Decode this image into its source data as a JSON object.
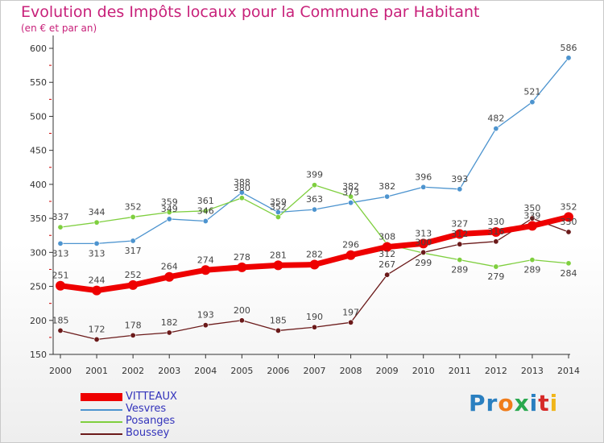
{
  "header": {
    "title": "Evolution des Impôts locaux pour la Commune par Habitant",
    "subtitle": "(en € et par an)"
  },
  "brand": {
    "text": "Proxiti",
    "letters": [
      "P",
      "r",
      "o",
      "x",
      "i",
      "t",
      "i"
    ],
    "letter_colors": [
      "#2a7fc0",
      "#2a7fc0",
      "#f07c1a",
      "#2aa94f",
      "#2a7fc0",
      "#d62a28",
      "#f0b51a"
    ]
  },
  "chart_data": {
    "type": "line",
    "title": "Evolution des Impôts locaux pour la Commune par Habitant",
    "subtitle": "(en € et par an)",
    "xlabel": "",
    "ylabel": "",
    "x": [
      "2000",
      "2001",
      "2002",
      "2003",
      "2004",
      "2005",
      "2006",
      "2007",
      "2008",
      "2009",
      "2010",
      "2011",
      "2012",
      "2013",
      "2014"
    ],
    "ylim": [
      150,
      600
    ],
    "yticks": [
      150,
      200,
      250,
      300,
      350,
      400,
      450,
      500,
      550,
      600
    ],
    "grid": false,
    "legend_position": "bottom-left",
    "series": [
      {
        "name": "VITTEAUX",
        "color": "#ee0000",
        "bold": true,
        "values": [
          251,
          244,
          252,
          264,
          274,
          278,
          281,
          282,
          296,
          308,
          313,
          327,
          330,
          339,
          352
        ],
        "labels": [
          "251",
          "244",
          "252",
          "264",
          "274",
          "278",
          "281",
          "282",
          "296",
          "308",
          "313",
          "327",
          "330",
          "339",
          "352"
        ]
      },
      {
        "name": "Vesvres",
        "color": "#4d94cf",
        "bold": false,
        "values": [
          313,
          313,
          317,
          349,
          346,
          388,
          359,
          363,
          373,
          382,
          396,
          393,
          482,
          521,
          586
        ],
        "labels": [
          "313",
          "313",
          "317",
          "349",
          "346",
          "388",
          "359",
          "363",
          "373",
          "382",
          "396",
          "393",
          "482",
          "521",
          "586"
        ]
      },
      {
        "name": "Posanges",
        "color": "#7fcf3f",
        "bold": false,
        "values": [
          337,
          344,
          352,
          359,
          361,
          380,
          352,
          399,
          382,
          312,
          299,
          289,
          279,
          289,
          284
        ],
        "labels": [
          "337",
          "344",
          "352",
          "359",
          "361",
          "380",
          "352",
          "399",
          "382",
          "312",
          "299",
          "289",
          "279",
          "289",
          "284"
        ]
      },
      {
        "name": "Boussey",
        "color": "#6b1a1a",
        "bold": false,
        "values": [
          185,
          172,
          178,
          182,
          193,
          200,
          185,
          190,
          197,
          267,
          300,
          312,
          316,
          350,
          330
        ],
        "labels": [
          "185",
          "172",
          "178",
          "182",
          "193",
          "200",
          "185",
          "190",
          "197",
          "267",
          "300",
          "312",
          "316",
          "350",
          "330"
        ]
      }
    ]
  }
}
